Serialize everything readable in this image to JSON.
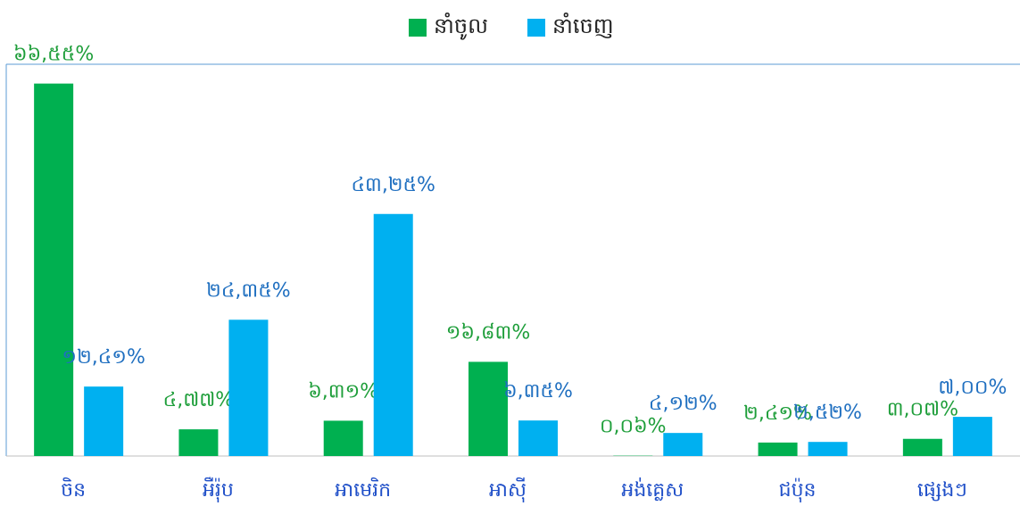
{
  "chart_data": {
    "type": "bar",
    "categories": [
      "ចិន",
      "អឺរ៉ុប",
      "អាមេរិក",
      "អាស៊ី",
      "អង់គ្លេស",
      "ជប៉ុន",
      "ផ្សេងៗ"
    ],
    "series": [
      {
        "name": "នាំចូល",
        "color": "#00b050",
        "values": [
          66.55,
          4.77,
          6.31,
          16.83,
          0.06,
          2.41,
          3.07
        ],
        "value_labels": [
          "៦៦,៥៥%",
          "៤,៧៧%",
          "៦,៣១%",
          "១៦,៨៣%",
          "០,០៦%",
          "២,៤១%",
          "៣,០៧%"
        ]
      },
      {
        "name": "នាំចេញ",
        "color": "#00b0f0",
        "values": [
          12.41,
          24.35,
          43.25,
          6.35,
          4.12,
          2.52,
          7.0
        ],
        "value_labels": [
          "១២,៤១%",
          "២៤,៣៥%",
          "៤៣,២៥%",
          "៦,៣៥%",
          "៤,១២%",
          "២,៥២%",
          "៧,០០%"
        ]
      }
    ],
    "ylim": [
      0,
      70
    ],
    "legend": "top"
  }
}
